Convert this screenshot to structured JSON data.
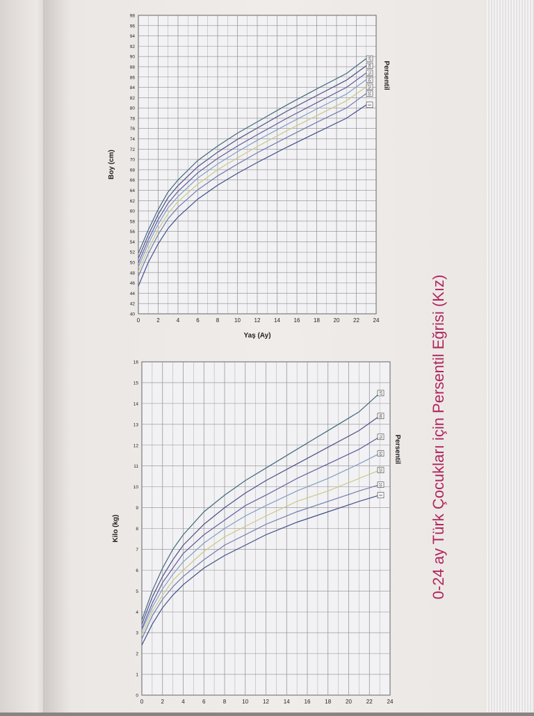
{
  "page_title": "0-24 ay Türk Çocukları için Persentil Eğrisi (Kız)",
  "colors": {
    "title": "#b0265e",
    "grid": "#8d8a8c",
    "plot_bg": "#f2f1f3",
    "axis_text": "#222222"
  },
  "chart_data": [
    {
      "id": "height",
      "type": "line",
      "ylabel": "Boy (cm)",
      "xlabel": "Yaş (Ay)",
      "legend_title": "Persentil",
      "legend_position": "right",
      "grid": true,
      "xlim": [
        0,
        24
      ],
      "ylim": [
        40,
        98
      ],
      "x_ticks": [
        "0",
        "2",
        "4",
        "6",
        "8",
        "10",
        "12",
        "14",
        "16",
        "18",
        "20",
        "22",
        "24"
      ],
      "y_ticks": [
        "40",
        "42",
        "44",
        "46",
        "48",
        "50",
        "52",
        "54",
        "56",
        "58",
        "60",
        "62",
        "64",
        "66",
        "68",
        "70",
        "72",
        "74",
        "76",
        "78",
        "80",
        "82",
        "84",
        "86",
        "88",
        "90",
        "92",
        "94",
        "96",
        "98"
      ],
      "x": [
        0,
        1,
        2,
        3,
        4,
        6,
        8,
        10,
        12,
        15,
        18,
        21,
        23
      ],
      "series": [
        {
          "name": "97",
          "color": "#3d6a7d",
          "values": [
            51.8,
            56.3,
            60.3,
            63.7,
            66.0,
            69.8,
            72.6,
            75.1,
            77.3,
            80.6,
            83.7,
            86.7,
            89.6
          ]
        },
        {
          "name": "90",
          "color": "#4a4f88",
          "values": [
            50.8,
            55.3,
            59.3,
            62.6,
            64.9,
            68.6,
            71.4,
            73.9,
            76.1,
            79.4,
            82.4,
            85.4,
            88.2
          ]
        },
        {
          "name": "75",
          "color": "#5f5a9e",
          "values": [
            49.9,
            54.4,
            58.3,
            61.5,
            63.8,
            67.4,
            70.2,
            72.6,
            74.8,
            78.0,
            81.0,
            84.0,
            86.8
          ]
        },
        {
          "name": "50",
          "color": "#7f9fc4",
          "values": [
            49.1,
            53.6,
            57.4,
            60.6,
            62.8,
            66.4,
            69.1,
            71.5,
            73.7,
            76.8,
            79.8,
            82.7,
            85.5
          ]
        },
        {
          "name": "25",
          "color": "#c8c98a",
          "values": [
            48.2,
            52.6,
            56.4,
            59.5,
            61.8,
            65.2,
            68.0,
            70.3,
            72.5,
            75.6,
            78.5,
            81.4,
            84.1
          ]
        },
        {
          "name": "10",
          "color": "#6e7cb0",
          "values": [
            47.3,
            51.7,
            55.4,
            58.5,
            60.7,
            64.1,
            66.8,
            69.1,
            71.3,
            74.3,
            77.2,
            80.0,
            82.8
          ]
        },
        {
          "name": "3",
          "color": "#3e4f8a",
          "values": [
            45.4,
            50.0,
            53.6,
            56.6,
            58.8,
            62.3,
            65.0,
            67.3,
            69.4,
            72.4,
            75.2,
            78.0,
            80.6
          ]
        }
      ]
    },
    {
      "id": "weight",
      "type": "line",
      "ylabel": "Kilo (kg)",
      "xlabel": "",
      "legend_title": "Persentil",
      "legend_position": "right",
      "grid": true,
      "xlim": [
        0,
        24
      ],
      "ylim": [
        0,
        16
      ],
      "x_ticks": [
        "0",
        "2",
        "4",
        "6",
        "8",
        "10",
        "12",
        "14",
        "16",
        "18",
        "20",
        "22",
        "24"
      ],
      "y_ticks": [
        "0",
        "1",
        "2",
        "3",
        "4",
        "5",
        "6",
        "7",
        "8",
        "9",
        "10",
        "11",
        "12",
        "13",
        "14",
        "15",
        "16"
      ],
      "x": [
        0,
        1,
        2,
        3,
        4,
        6,
        8,
        10,
        12,
        15,
        18,
        21,
        23
      ],
      "series": [
        {
          "name": "97",
          "color": "#3d6a7d",
          "values": [
            3.6,
            5.0,
            6.1,
            7.0,
            7.7,
            8.8,
            9.6,
            10.3,
            10.9,
            11.8,
            12.7,
            13.6,
            14.5
          ]
        },
        {
          "name": "90",
          "color": "#4a4f88",
          "values": [
            3.4,
            4.7,
            5.7,
            6.5,
            7.2,
            8.2,
            9.0,
            9.7,
            10.3,
            11.1,
            11.9,
            12.7,
            13.4
          ]
        },
        {
          "name": "75",
          "color": "#5f5a9e",
          "values": [
            3.2,
            4.4,
            5.4,
            6.1,
            6.8,
            7.7,
            8.4,
            9.1,
            9.6,
            10.4,
            11.1,
            11.8,
            12.4
          ]
        },
        {
          "name": "50",
          "color": "#7f9fc4",
          "values": [
            3.1,
            4.2,
            5.1,
            5.8,
            6.4,
            7.3,
            8.0,
            8.6,
            9.1,
            9.8,
            10.4,
            11.1,
            11.6
          ]
        },
        {
          "name": "25",
          "color": "#c8c98a",
          "values": [
            2.9,
            4.0,
            4.8,
            5.5,
            6.0,
            6.9,
            7.6,
            8.1,
            8.6,
            9.3,
            9.8,
            10.4,
            10.8
          ]
        },
        {
          "name": "10",
          "color": "#6e7cb0",
          "values": [
            2.7,
            3.8,
            4.6,
            5.2,
            5.7,
            6.5,
            7.2,
            7.7,
            8.2,
            8.8,
            9.3,
            9.8,
            10.1
          ]
        },
        {
          "name": "3",
          "color": "#3e4f8a",
          "values": [
            2.4,
            3.4,
            4.2,
            4.8,
            5.3,
            6.1,
            6.7,
            7.2,
            7.7,
            8.3,
            8.8,
            9.3,
            9.6
          ]
        }
      ]
    }
  ]
}
